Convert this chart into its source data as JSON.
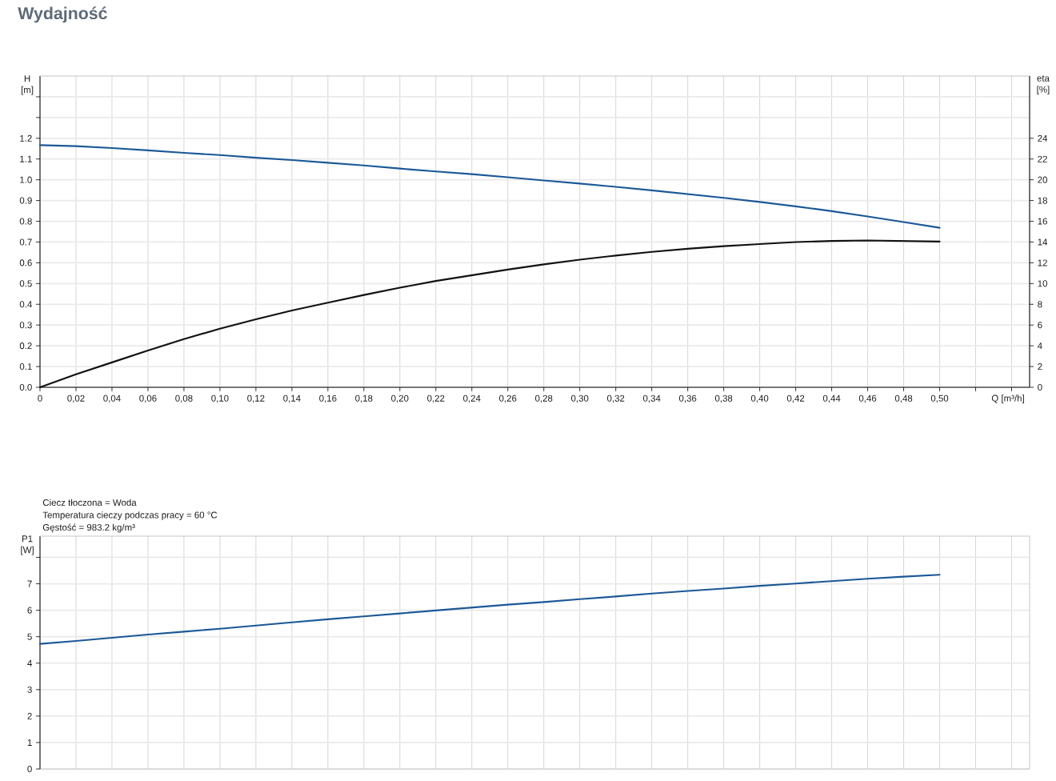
{
  "chart_data": [
    {
      "type": "line",
      "title": "Wydajność",
      "xlabel": "Q [m³/h]",
      "ylabel": "H [m]",
      "y2label": "eta [%]",
      "x": [
        0,
        0.02,
        0.04,
        0.06,
        0.08,
        0.1,
        0.12,
        0.14,
        0.16,
        0.18,
        0.2,
        0.22,
        0.24,
        0.26,
        0.28,
        0.3,
        0.32,
        0.34,
        0.36,
        0.38,
        0.4,
        0.42,
        0.44,
        0.46,
        0.48,
        0.5
      ],
      "xlim": [
        0,
        0.55
      ],
      "xticks": [
        {
          "value": 0,
          "label": "0"
        },
        {
          "value": 0.02,
          "label": "0,02"
        },
        {
          "value": 0.04,
          "label": "0,04"
        },
        {
          "value": 0.06,
          "label": "0,06"
        },
        {
          "value": 0.08,
          "label": "0,08"
        },
        {
          "value": 0.1,
          "label": "0,10"
        },
        {
          "value": 0.12,
          "label": "0,12"
        },
        {
          "value": 0.14,
          "label": "0,14"
        },
        {
          "value": 0.16,
          "label": "0,16"
        },
        {
          "value": 0.18,
          "label": "0,18"
        },
        {
          "value": 0.2,
          "label": "0,20"
        },
        {
          "value": 0.22,
          "label": "0,22"
        },
        {
          "value": 0.24,
          "label": "0,24"
        },
        {
          "value": 0.26,
          "label": "0,26"
        },
        {
          "value": 0.28,
          "label": "0,28"
        },
        {
          "value": 0.3,
          "label": "0,30"
        },
        {
          "value": 0.32,
          "label": "0,32"
        },
        {
          "value": 0.34,
          "label": "0,34"
        },
        {
          "value": 0.36,
          "label": "0,36"
        },
        {
          "value": 0.38,
          "label": "0,38"
        },
        {
          "value": 0.4,
          "label": "0,40"
        },
        {
          "value": 0.42,
          "label": "0,42"
        },
        {
          "value": 0.44,
          "label": "0,44"
        },
        {
          "value": 0.46,
          "label": "0,46"
        },
        {
          "value": 0.48,
          "label": "0,48"
        },
        {
          "value": 0.5,
          "label": "0,50"
        },
        {
          "value": 0.52,
          "label": null
        },
        {
          "value": 0.54,
          "label": null
        }
      ],
      "ylim": [
        0,
        1.5
      ],
      "yticks": [
        {
          "value": 0,
          "label": "0.0"
        },
        0.1,
        0.2,
        0.3,
        0.4,
        0.5,
        0.6,
        0.7,
        0.8,
        0.9,
        {
          "value": 1,
          "label": "1.0"
        },
        1.1,
        1.2,
        {
          "value": 1.3,
          "label": null
        },
        {
          "value": 1.4,
          "label": null
        }
      ],
      "y2lim": [
        0,
        30
      ],
      "y2ticks": [
        0,
        2,
        4,
        6,
        8,
        10,
        12,
        14,
        16,
        18,
        20,
        22,
        24
      ],
      "grid": true,
      "line_style": "solid",
      "series": [
        {
          "color": "#1b5896",
          "values": [
            1.167,
            1.162,
            1.153,
            1.142,
            1.13,
            1.119,
            1.106,
            1.095,
            1.082,
            1.069,
            1.054,
            1.04,
            1.027,
            1.012,
            0.997,
            0.982,
            0.966,
            0.949,
            0.931,
            0.913,
            0.893,
            0.872,
            0.849,
            0.823,
            0.796,
            0.769
          ]
        },
        {
          "color": "#111111",
          "axis": "y2",
          "values": [
            0,
            1.25,
            2.4,
            3.55,
            4.65,
            5.65,
            6.55,
            7.4,
            8.15,
            8.9,
            9.6,
            10.25,
            10.8,
            11.35,
            11.85,
            12.3,
            12.7,
            13.05,
            13.35,
            13.6,
            13.8,
            14.0,
            14.1,
            14.15,
            14.1,
            14.05
          ]
        }
      ]
    },
    {
      "type": "line",
      "ylabel": "P1 [W]",
      "annotations": [
        "Ciecz tłoczona = Woda",
        "Temperatura cieczy podczas pracy = 60 °C",
        "Gęstość = 983.2 kg/m³"
      ],
      "x": [
        0,
        0.02,
        0.04,
        0.06,
        0.08,
        0.1,
        0.12,
        0.14,
        0.16,
        0.18,
        0.2,
        0.22,
        0.24,
        0.26,
        0.28,
        0.3,
        0.32,
        0.34,
        0.36,
        0.38,
        0.4,
        0.42,
        0.44,
        0.46,
        0.48,
        0.5
      ],
      "xlim": [
        0,
        0.55
      ],
      "xticks": [
        0,
        0.02,
        0.04,
        0.06,
        0.08,
        0.1,
        0.12,
        0.14,
        0.16,
        0.18,
        0.2,
        0.22,
        0.24,
        0.26,
        0.28,
        0.3,
        0.32,
        0.34,
        0.36,
        0.38,
        0.4,
        0.42,
        0.44,
        0.46,
        0.48,
        0.5,
        0.52,
        0.54
      ],
      "tick_labels": "y",
      "ylim": [
        0,
        8.8
      ],
      "yticks": [
        0,
        1,
        2,
        3,
        4,
        5,
        6,
        7,
        {
          "value": 8,
          "label": null
        }
      ],
      "grid": true,
      "line_style": "solid",
      "series": [
        {
          "color": "#1b5896",
          "values": [
            4.73,
            4.84,
            4.96,
            5.08,
            5.19,
            5.3,
            5.42,
            5.54,
            5.66,
            5.77,
            5.88,
            5.99,
            6.1,
            6.21,
            6.31,
            6.42,
            6.52,
            6.63,
            6.73,
            6.82,
            6.92,
            7.01,
            7.1,
            7.19,
            7.27,
            7.34
          ]
        }
      ]
    }
  ]
}
